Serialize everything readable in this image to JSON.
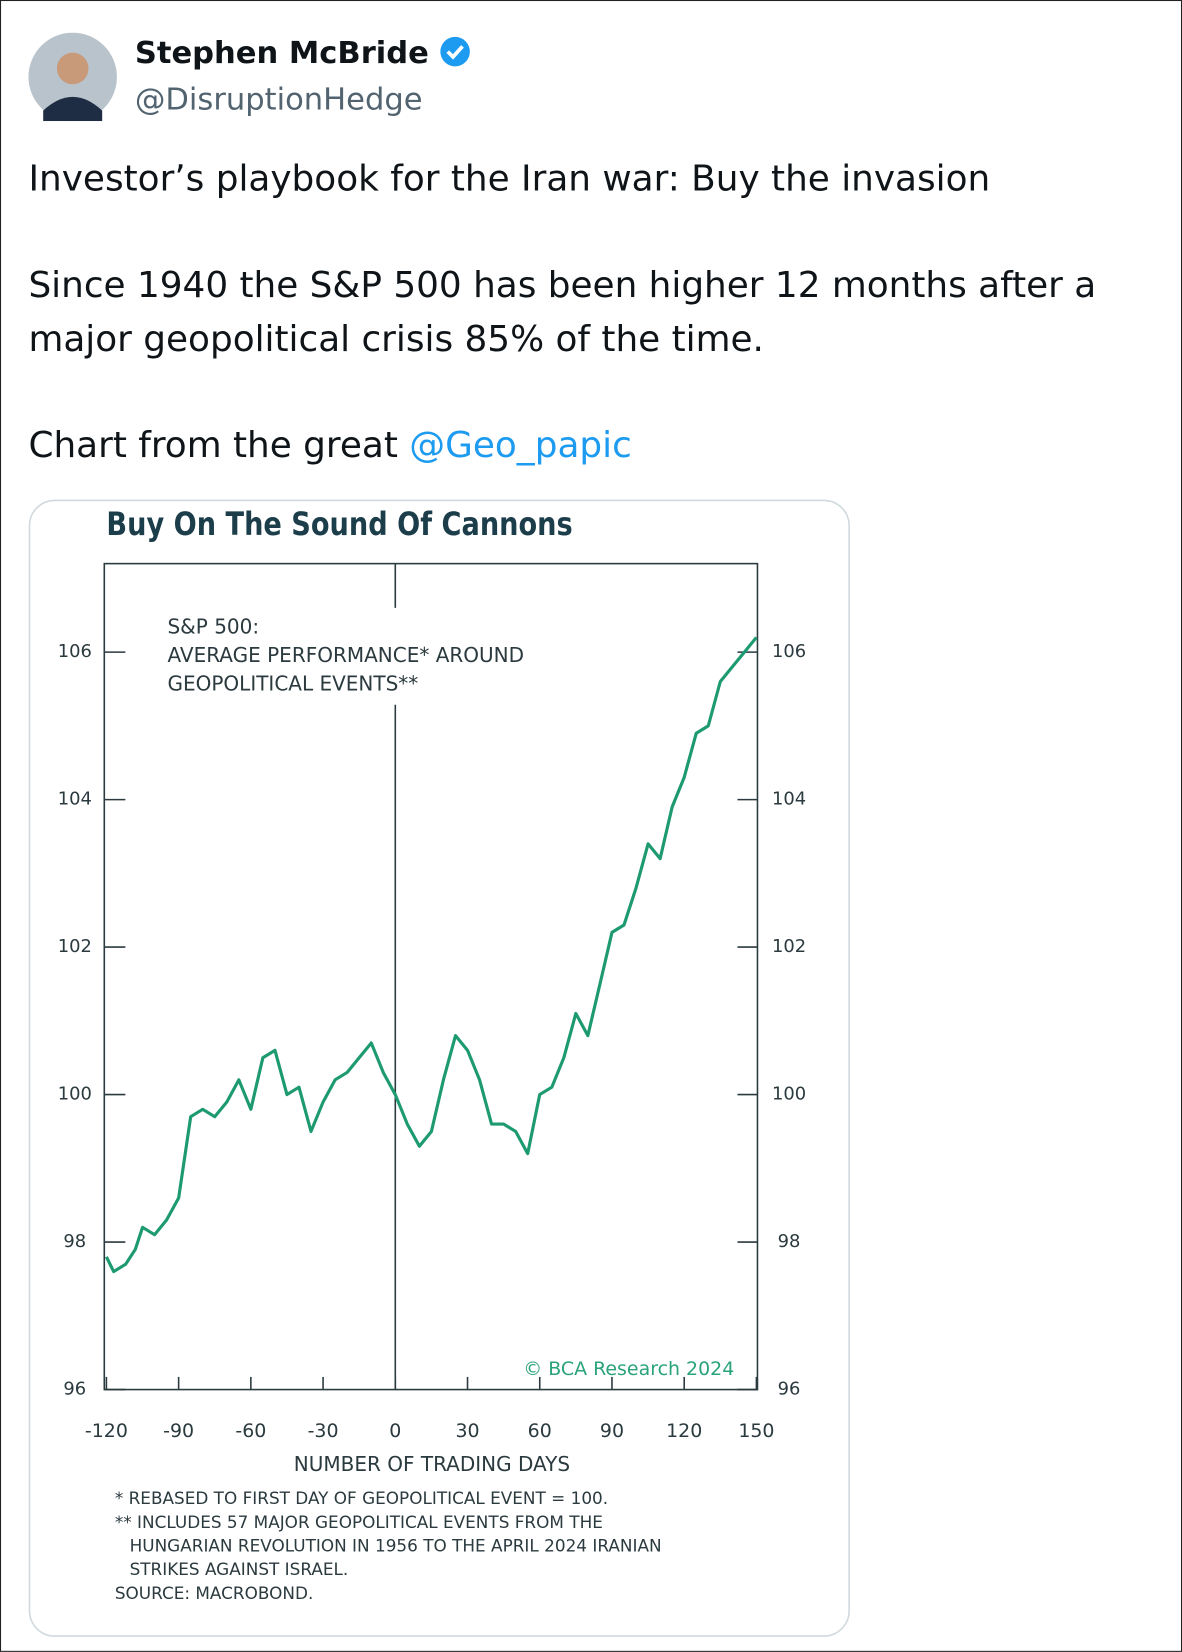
{
  "tweet": {
    "name": "Stephen McBride",
    "handle": "@DisruptionHedge",
    "paragraphs": [
      "Investor’s playbook for the Iran war: Buy the invasion",
      "Since 1940 the S&P 500 has been higher 12 months after a major geopolitical crisis 85% of the time.",
      "Chart from the great "
    ],
    "mention": "@Geo_papic"
  },
  "chart_data": {
    "type": "line",
    "title": "Buy On The Sound Of Cannons",
    "annotation": [
      "S&P 500:",
      "AVERAGE PERFORMANCE* AROUND",
      "GEOPOLITICAL EVENTS**"
    ],
    "x_label": "NUMBER OF TRADING DAYS",
    "footnotes": [
      "* REBASED TO FIRST DAY OF GEOPOLITICAL EVENT = 100.",
      "** INCLUDES 57 MAJOR GEOPOLITICAL EVENTS FROM THE",
      "HUNGARIAN REVOLUTION IN 1956 TO THE APRIL 2024 IRANIAN",
      "STRIKES AGAINST ISRAEL.",
      "SOURCE: MACROBOND."
    ],
    "watermark": "© BCA Research 2024",
    "color": "#1e9a70",
    "x": [
      -120,
      -117,
      -112,
      -108,
      -105,
      -100,
      -95,
      -90,
      -85,
      -80,
      -75,
      -70,
      -65,
      -60,
      -55,
      -50,
      -45,
      -40,
      -35,
      -30,
      -25,
      -20,
      -15,
      -10,
      -5,
      0,
      5,
      10,
      15,
      20,
      25,
      30,
      35,
      40,
      45,
      50,
      55,
      60,
      65,
      70,
      75,
      80,
      85,
      90,
      95,
      100,
      105,
      110,
      115,
      120,
      125,
      130,
      135,
      140,
      145,
      150
    ],
    "values": [
      97.8,
      97.6,
      97.7,
      97.9,
      98.2,
      98.1,
      98.3,
      98.6,
      99.7,
      99.8,
      99.7,
      99.9,
      100.2,
      99.8,
      100.5,
      100.6,
      100.0,
      100.1,
      99.5,
      99.9,
      100.2,
      100.3,
      100.5,
      100.7,
      100.3,
      100.0,
      99.6,
      99.3,
      99.5,
      100.2,
      100.8,
      100.6,
      100.2,
      99.6,
      99.6,
      99.5,
      99.2,
      100.0,
      100.1,
      100.5,
      101.1,
      100.8,
      101.5,
      102.2,
      102.3,
      102.8,
      103.4,
      103.2,
      103.9,
      104.3,
      104.9,
      105.0,
      105.6,
      105.8,
      106.0,
      106.2
    ],
    "xlim": [
      -120,
      150
    ],
    "xticks": [
      -120,
      -90,
      -60,
      -30,
      0,
      30,
      60,
      90,
      120,
      150
    ],
    "ylim": [
      96,
      107.2
    ],
    "yticks": [
      96,
      98,
      100,
      102,
      104,
      106
    ]
  }
}
